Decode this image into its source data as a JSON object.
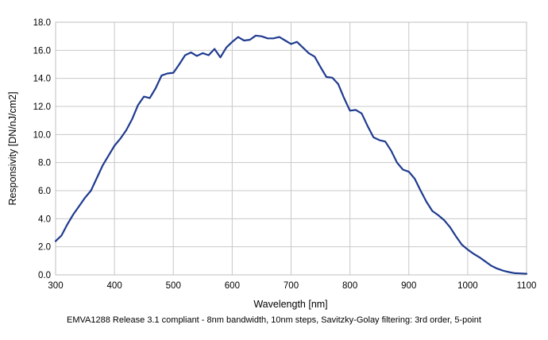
{
  "chart_data": {
    "type": "line",
    "title": "",
    "xlabel": "Wavelength [nm]",
    "ylabel": "Responsivity [DN/nJ/cm2]",
    "xlim": [
      300,
      1100
    ],
    "ylim": [
      0,
      18
    ],
    "x_ticks": [
      "300",
      "400",
      "500",
      "600",
      "700",
      "800",
      "900",
      "1000",
      "1100"
    ],
    "y_ticks": [
      "0.0",
      "2.0",
      "4.0",
      "6.0",
      "8.0",
      "10.0",
      "12.0",
      "14.0",
      "16.0",
      "18.0"
    ],
    "grid": true,
    "legend": "none",
    "line_color": "#1f3b8f",
    "series": [
      {
        "x": [
          300,
          310,
          320,
          330,
          340,
          350,
          360,
          370,
          380,
          390,
          400,
          410,
          420,
          430,
          440,
          450,
          460,
          470,
          480,
          490,
          500,
          510,
          520,
          530,
          540,
          550,
          560,
          570,
          580,
          590,
          600,
          610,
          620,
          630,
          640,
          650,
          660,
          670,
          680,
          690,
          700,
          710,
          720,
          730,
          740,
          750,
          760,
          770,
          780,
          790,
          800,
          810,
          820,
          830,
          840,
          850,
          860,
          870,
          880,
          890,
          900,
          910,
          920,
          930,
          940,
          950,
          960,
          970,
          980,
          990,
          1000,
          1010,
          1020,
          1030,
          1040,
          1050,
          1060,
          1070,
          1080,
          1090,
          1100
        ],
        "values": [
          2.4,
          2.8,
          3.6,
          4.3,
          4.9,
          5.5,
          6.0,
          6.9,
          7.8,
          8.5,
          9.2,
          9.7,
          10.3,
          11.1,
          12.1,
          12.7,
          12.6,
          13.3,
          14.2,
          14.35,
          14.4,
          15.0,
          15.65,
          15.85,
          15.6,
          15.8,
          15.65,
          16.1,
          15.5,
          16.2,
          16.6,
          16.95,
          16.7,
          16.75,
          17.05,
          17.0,
          16.85,
          16.85,
          16.95,
          16.7,
          16.45,
          16.6,
          16.2,
          15.8,
          15.55,
          14.8,
          14.1,
          14.05,
          13.6,
          12.6,
          11.7,
          11.75,
          11.5,
          10.6,
          9.8,
          9.6,
          9.5,
          8.85,
          8.0,
          7.5,
          7.35,
          6.85,
          6.0,
          5.2,
          4.55,
          4.25,
          3.9,
          3.4,
          2.75,
          2.15,
          1.8,
          1.5,
          1.25,
          0.95,
          0.65,
          0.45,
          0.3,
          0.2,
          0.12,
          0.1,
          0.08
        ]
      }
    ]
  },
  "caption": "EMVA1288 Release 3.1 compliant - 8nm bandwidth, 10nm steps, Savitzky-Golay filtering: 3rd order, 5-point"
}
